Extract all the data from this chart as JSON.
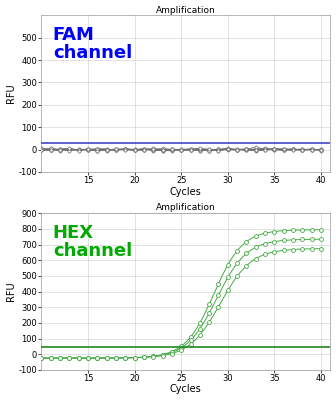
{
  "title": "Amplification",
  "xlabel": "Cycles",
  "ylabel": "RFU",
  "fam": {
    "label": "FAM\nchannel",
    "label_color": "#0000FF",
    "line_color": "#707070",
    "marker_color": "#707070",
    "threshold_color": "#4444CC",
    "threshold_value": 28,
    "ylim": [
      -100,
      600
    ],
    "yticks": [
      0,
      100,
      200,
      300,
      400,
      500
    ],
    "n_lines": 8,
    "noise_std": 3
  },
  "hex": {
    "label": "HEX\nchannel",
    "label_color": "#00AA00",
    "line_color": "#44AA44",
    "marker_color": "#44AA44",
    "threshold_color": "#228822",
    "threshold_value": 45,
    "ylim": [
      -100,
      900
    ],
    "yticks": [
      0,
      100,
      200,
      300,
      400,
      500,
      600,
      700,
      800,
      900
    ],
    "n_lines": 3
  },
  "xlim": [
    10,
    41
  ],
  "xticks": [
    15,
    20,
    25,
    30,
    35,
    40
  ],
  "background_color": "#FFFFFF",
  "grid_color": "#CCCCCC",
  "title_fontsize": 6.5,
  "axis_label_fontsize": 7,
  "tick_fontsize": 6,
  "channel_fontsize": 13
}
